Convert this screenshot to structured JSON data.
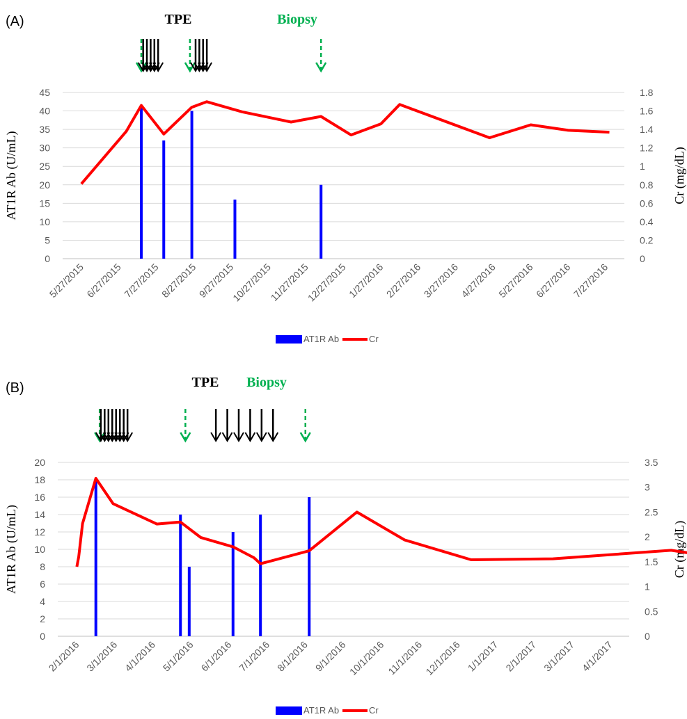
{
  "chart_data": [
    {
      "panel_label": "(A)",
      "type": "bar+line",
      "annotations": {
        "tpe_label": "TPE",
        "biopsy_label": "Biopsy"
      },
      "x_categories": [
        "5/27/2015",
        "6/27/2015",
        "7/27/2015",
        "8/27/2015",
        "9/27/2015",
        "10/27/2015",
        "11/27/2015",
        "12/27/2015",
        "1/27/2016",
        "2/27/2016",
        "3/27/2016",
        "4/27/2016",
        "5/27/2016",
        "6/27/2016",
        "7/27/2016"
      ],
      "ylabel_left": "AT1R Ab (U/mL)",
      "ylabel_right": "Cr (mg/dL)",
      "left_ticks": [
        "0",
        "5",
        "10",
        "15",
        "20",
        "25",
        "30",
        "35",
        "40",
        "45"
      ],
      "right_ticks": [
        "0",
        "0.2",
        "0.4",
        "0.6",
        "0.8",
        "1",
        "1.2",
        "1.4",
        "1.6",
        "1.8"
      ],
      "ylim_left": [
        0,
        45
      ],
      "ylim_right": [
        0,
        1.8
      ],
      "biopsy_arrows_x": [
        1.6,
        2.9,
        6.4
      ],
      "tpe_arrows_x": [
        1.65,
        1.75,
        1.85,
        1.95,
        2.05,
        3.05,
        3.15,
        3.25,
        3.35
      ],
      "series": [
        {
          "name": "AT1R Ab",
          "type": "bar",
          "axis": "left",
          "color": "#0000ff",
          "points": [
            [
              1.6,
              41
            ],
            [
              2.2,
              32
            ],
            [
              2.95,
              40
            ],
            [
              4.1,
              16
            ],
            [
              6.4,
              20
            ]
          ]
        },
        {
          "name": "Cr",
          "type": "line",
          "axis": "right",
          "color": "#ff0000",
          "points": [
            [
              0,
              0.81
            ],
            [
              1.2,
              1.38
            ],
            [
              1.6,
              1.66
            ],
            [
              2.2,
              1.35
            ],
            [
              2.95,
              1.64
            ],
            [
              3.35,
              1.7
            ],
            [
              4.3,
              1.59
            ],
            [
              5.6,
              1.48
            ],
            [
              6.4,
              1.54
            ],
            [
              7.2,
              1.34
            ],
            [
              8.0,
              1.46
            ],
            [
              8.5,
              1.67
            ],
            [
              10.9,
              1.31
            ],
            [
              12.0,
              1.45
            ],
            [
              13.0,
              1.39
            ],
            [
              14.1,
              1.37
            ]
          ]
        }
      ],
      "legend": {
        "position": "bottom",
        "entries": [
          "AT1R Ab",
          "Cr"
        ]
      }
    },
    {
      "panel_label": "(B)",
      "type": "bar+line",
      "annotations": {
        "tpe_label": "TPE",
        "biopsy_label": "Biopsy"
      },
      "x_categories": [
        "2/1/2016",
        "3/1/2016",
        "4/1/2016",
        "5/1/2016",
        "6/1/2016",
        "7/1/2016",
        "8/1/2016",
        "9/1/2016",
        "10/1/2016",
        "11/1/2016",
        "12/1/2016",
        "1/1/2017",
        "2/1/2017",
        "3/1/2017",
        "4/1/2017"
      ],
      "ylabel_left": "AT1R Ab (U/mL)",
      "ylabel_right": "Cr (mg/dL)",
      "left_ticks": [
        "0",
        "2",
        "4",
        "6",
        "8",
        "10",
        "12",
        "14",
        "16",
        "18",
        "20"
      ],
      "right_ticks": [
        "0",
        "0.5",
        "1",
        "1.5",
        "2",
        "2.5",
        "3",
        "3.5"
      ],
      "ylim_left": [
        0,
        20
      ],
      "ylim_right": [
        0,
        3.5
      ],
      "biopsy_arrows_x": [
        0.6,
        2.85,
        6.0
      ],
      "tpe_arrows_x": [
        0.63,
        0.73,
        0.83,
        0.93,
        1.03,
        1.13,
        1.23,
        1.33,
        3.65,
        3.95,
        4.25,
        4.55,
        4.85,
        5.15
      ],
      "series": [
        {
          "name": "AT1R Ab",
          "type": "bar",
          "axis": "left",
          "color": "#0000ff",
          "points": [
            [
              0.5,
              18
            ],
            [
              2.72,
              14
            ],
            [
              2.95,
              8
            ],
            [
              4.1,
              12
            ],
            [
              4.82,
              14
            ],
            [
              6.1,
              16
            ]
          ]
        },
        {
          "name": "Cr",
          "type": "line",
          "axis": "right",
          "color": "#ff0000",
          "points": [
            [
              0,
              1.4
            ],
            [
              0.05,
              1.6
            ],
            [
              0.15,
              2.27
            ],
            [
              0.5,
              3.18
            ],
            [
              0.95,
              2.67
            ],
            [
              2.1,
              2.26
            ],
            [
              2.72,
              2.3
            ],
            [
              3.25,
              1.99
            ],
            [
              4.1,
              1.8
            ],
            [
              4.65,
              1.58
            ],
            [
              4.82,
              1.46
            ],
            [
              6.1,
              1.72
            ],
            [
              7.35,
              2.5
            ],
            [
              8.6,
              1.94
            ],
            [
              10.35,
              1.54
            ],
            [
              12.5,
              1.56
            ],
            [
              15.6,
              1.73
            ],
            [
              18.3,
              1.42
            ],
            [
              20.3,
              1.66
            ]
          ]
        }
      ],
      "legend": {
        "position": "bottom",
        "entries": [
          "AT1R Ab",
          "Cr"
        ]
      }
    }
  ]
}
